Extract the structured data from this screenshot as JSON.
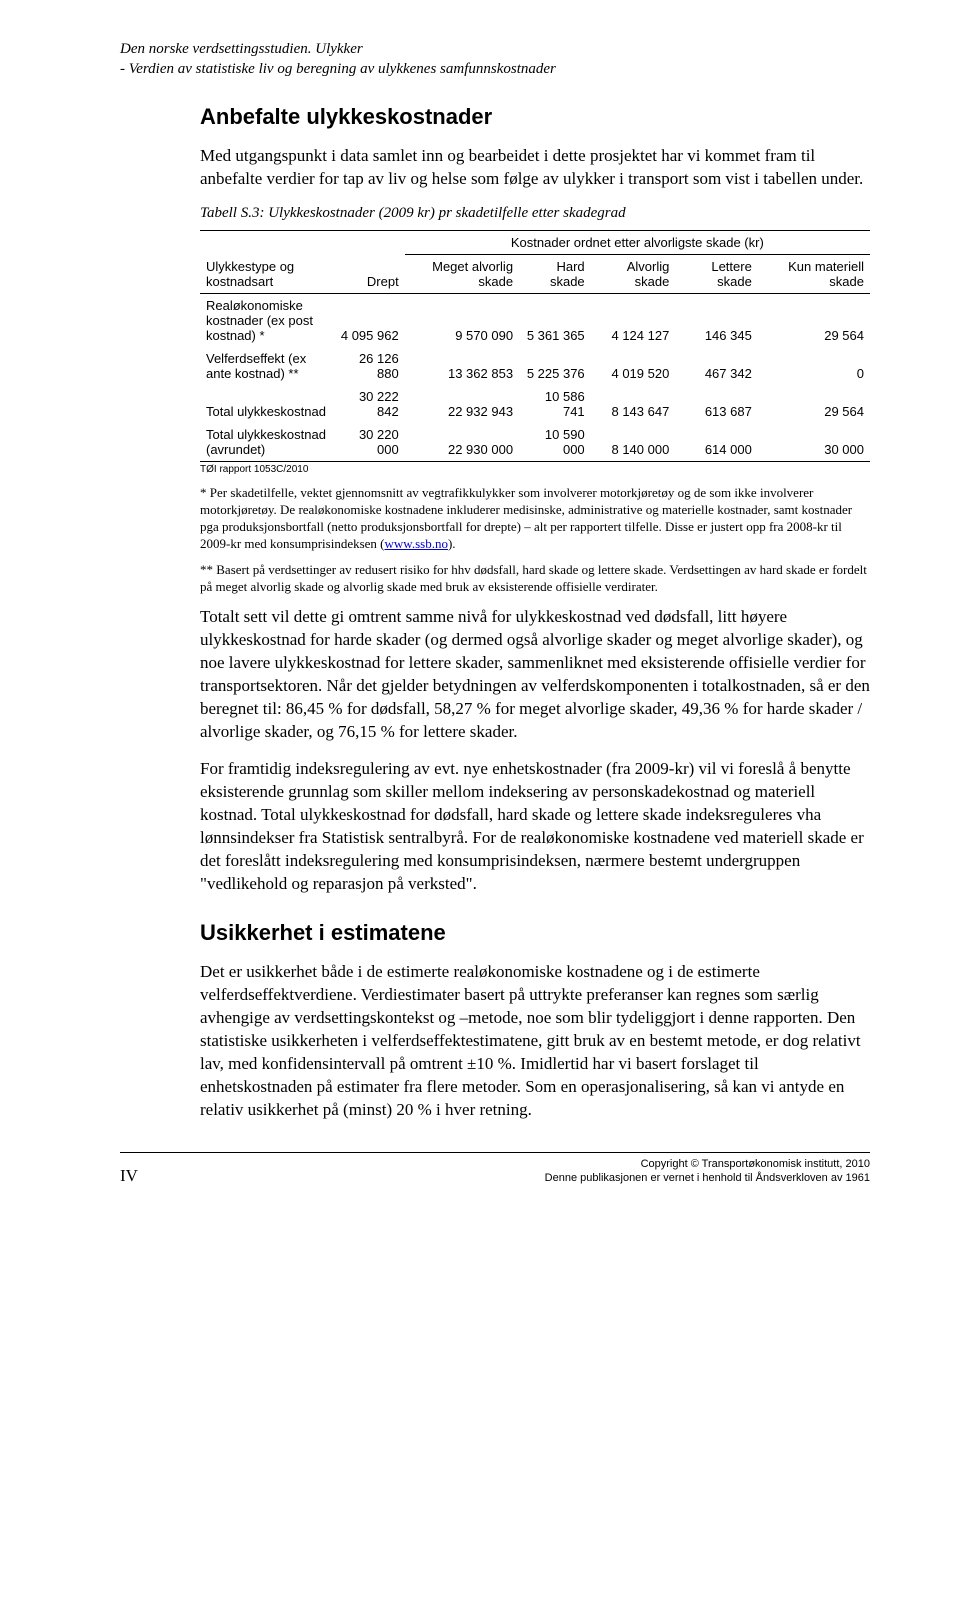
{
  "header": {
    "line1": "Den norske verdsettingsstudien. Ulykker",
    "line2": "- Verdien av statistiske liv og beregning av ulykkenes samfunnskostnader"
  },
  "section1": {
    "title": "Anbefalte ulykkeskostnader",
    "para1": "Med utgangspunkt i data samlet inn og bearbeidet i dette prosjektet har vi kommet fram til anbefalte verdier for tap av liv og helse som følge av ulykker i transport som vist i tabellen under."
  },
  "table": {
    "caption": "Tabell S.3: Ulykkeskostnader (2009 kr) pr skadetilfelle etter skadegrad",
    "span_header": "Kostnader ordnet etter alvorligste skade (kr)",
    "col_labels": {
      "type": "Ulykkestype og kostnadsart",
      "drept": "Drept",
      "meget": "Meget alvorlig skade",
      "hard": "Hard skade",
      "alvorlig": "Alvorlig skade",
      "lettere": "Lettere skade",
      "materiell": "Kun materiell skade"
    },
    "rows": [
      {
        "label": "Realøkonomiske kostnader (ex post kostnad) *",
        "v": [
          "4 095 962",
          "9 570 090",
          "5 361 365",
          "4 124 127",
          "146 345",
          "29 564"
        ]
      },
      {
        "label": "Velferdseffekt (ex ante kostnad) **",
        "v": [
          "26 126 880",
          "13 362 853",
          "5 225 376",
          "4 019 520",
          "467 342",
          "0"
        ]
      },
      {
        "label": "Total ulykkeskostnad",
        "v": [
          "30 222 842",
          "22 932 943",
          "10 586 741",
          "8 143 647",
          "613 687",
          "29 564"
        ]
      },
      {
        "label": "Total ulykkeskostnad (avrundet)",
        "v": [
          "30 220 000",
          "22 930 000",
          "10 590 000",
          "8 140 000",
          "614 000",
          "30 000"
        ]
      }
    ],
    "source": "TØI rapport 1053C/2010"
  },
  "footnotes": {
    "f1a": "* Per skadetilfelle, vektet gjennomsnitt av vegtrafikkulykker som involverer motorkjøretøy og de som ikke involverer motorkjøretøy. De realøkonomiske kostnadene inkluderer medisinske, administrative og materielle kostnader, samt kostnader pga produksjonsbortfall (netto produksjonsbortfall for drepte) – alt per rapportert tilfelle. Disse er justert opp fra 2008-kr til 2009-kr med konsumprisindeksen (",
    "f1link": "www.ssb.no",
    "f1b": ").",
    "f2": "** Basert på verdsettinger av redusert risiko for hhv dødsfall, hard skade og lettere skade. Verdsettingen av hard skade er fordelt på meget alvorlig skade og alvorlig skade med bruk av eksisterende offisielle verdirater."
  },
  "body": {
    "p1": "Totalt sett vil dette gi omtrent samme nivå for ulykkeskostnad ved dødsfall, litt høyere ulykkeskostnad for harde skader (og dermed også alvorlige skader og meget alvorlige skader), og noe lavere ulykkeskostnad for lettere skader, sammenliknet med eksisterende offisielle verdier for transportsektoren. Når det gjelder betydningen av velferdskomponenten i totalkostnaden, så er den beregnet til: 86,45 % for dødsfall, 58,27 % for meget alvorlige skader, 49,36 % for harde skader / alvorlige skader, og 76,15 % for lettere skader.",
    "p2": "For framtidig indeksregulering av evt. nye enhetskostnader (fra 2009-kr) vil vi foreslå å benytte eksisterende grunnlag som skiller mellom indeksering av personskadekostnad og materiell kostnad. Total ulykkeskostnad for dødsfall, hard skade og lettere skade indeksreguleres vha lønnsindekser fra Statistisk sentralbyrå. For de realøkonomiske kostnadene ved materiell skade er det foreslått indeksregulering med konsumprisindeksen, nærmere bestemt undergruppen \"vedlikehold og reparasjon på verksted\"."
  },
  "section2": {
    "title": "Usikkerhet i estimatene",
    "p1": "Det er usikkerhet både i de estimerte realøkonomiske kostnadene og i de estimerte velferdseffektverdiene. Verdiestimater basert på uttrykte preferanser kan regnes som særlig avhengige av verdsettingskontekst og –metode, noe som blir tydeliggjort i denne rapporten. Den statistiske usikkerheten i velferdseffektestimatene, gitt bruk av en bestemt metode, er dog relativt lav, med konfidensintervall på omtrent ±10 %. Imidlertid har vi basert forslaget til enhetskostnaden på estimater fra flere metoder. Som en operasjonalisering, så kan vi antyde en relativ usikkerhet på (minst) 20 % i hver retning."
  },
  "footer": {
    "page": "IV",
    "copyright": "Copyright © Transportøkonomisk institutt, 2010",
    "note": "Denne publikasjonen er vernet i henhold til Åndsverkloven av 1961"
  }
}
